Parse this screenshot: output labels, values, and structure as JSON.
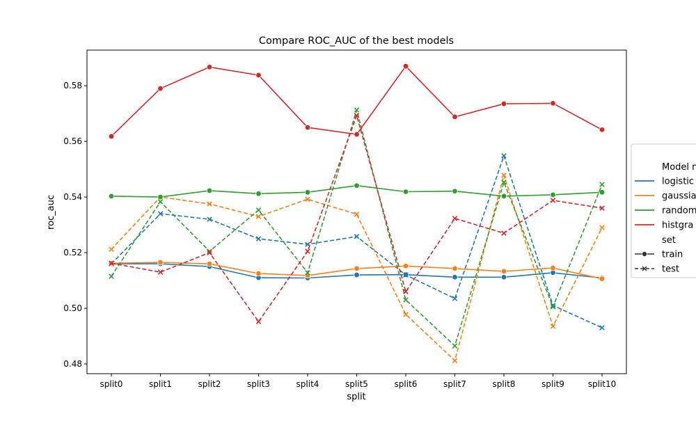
{
  "chart_data": {
    "type": "line",
    "title": "Compare ROC_AUC of the best models",
    "xlabel": "split",
    "ylabel": "roc_auc",
    "categories": [
      "split0",
      "split1",
      "split2",
      "split3",
      "split4",
      "split5",
      "split6",
      "split7",
      "split8",
      "split9",
      "split10"
    ],
    "ylim": [
      0.4765,
      0.5928
    ],
    "yticks": [
      0.48,
      0.5,
      0.52,
      0.54,
      0.56,
      0.58
    ],
    "ytick_labels": [
      "0.48",
      "0.50",
      "0.52",
      "0.54",
      "0.56",
      "0.58"
    ],
    "grid": false,
    "legend": {
      "placement": "right, partially cut off",
      "title": "Model n",
      "style_title": "set",
      "entries": [
        {
          "label": "logistic",
          "color": "#1f77b4"
        },
        {
          "label": "gaussia",
          "color": "#ff7f0e"
        },
        {
          "label": "random",
          "color": "#2ca02c"
        },
        {
          "label": "histgra",
          "color": "#d62728"
        }
      ],
      "style_entries": [
        {
          "label": "train",
          "dash": "solid",
          "marker": "circle"
        },
        {
          "label": "test",
          "dash": "dashed",
          "marker": "x"
        }
      ]
    },
    "series": [
      {
        "model": "logistic",
        "set": "train",
        "color": "#1f77b4",
        "dash": "solid",
        "marker": "circle",
        "values": [
          0.516,
          0.516,
          0.515,
          0.511,
          0.5109,
          0.512,
          0.5121,
          0.5112,
          0.5112,
          0.5128,
          0.5109
        ]
      },
      {
        "model": "logistic",
        "set": "test",
        "color": "#1f77b4",
        "dash": "dashed",
        "marker": "x",
        "values": [
          0.516,
          0.534,
          0.532,
          0.525,
          0.523,
          0.5258,
          0.512,
          0.5035,
          0.5548,
          0.501,
          0.493
        ]
      },
      {
        "model": "gaussia",
        "set": "train",
        "color": "#ff7f0e",
        "dash": "solid",
        "marker": "circle",
        "values": [
          0.5162,
          0.5165,
          0.516,
          0.5125,
          0.5118,
          0.5143,
          0.5152,
          0.5143,
          0.5133,
          0.5145,
          0.5106
        ]
      },
      {
        "model": "gaussia",
        "set": "test",
        "color": "#ff7f0e",
        "dash": "dashed",
        "marker": "x",
        "values": [
          0.5212,
          0.54,
          0.5375,
          0.533,
          0.5392,
          0.5338,
          0.4978,
          0.4812,
          0.5478,
          0.4935,
          0.529
        ]
      },
      {
        "model": "random",
        "set": "train",
        "color": "#2ca02c",
        "dash": "solid",
        "marker": "circle",
        "values": [
          0.5403,
          0.54,
          0.5423,
          0.5412,
          0.5417,
          0.5441,
          0.5419,
          0.5421,
          0.5403,
          0.5408,
          0.5417
        ]
      },
      {
        "model": "random",
        "set": "test",
        "color": "#2ca02c",
        "dash": "dashed",
        "marker": "x",
        "values": [
          0.5115,
          0.5383,
          0.5205,
          0.5353,
          0.5128,
          0.5713,
          0.503,
          0.4865,
          0.5453,
          0.5005,
          0.5445
        ]
      },
      {
        "model": "histgra",
        "set": "train",
        "color": "#d62728",
        "dash": "solid",
        "marker": "circle",
        "values": [
          0.5618,
          0.579,
          0.5867,
          0.5838,
          0.565,
          0.5625,
          0.587,
          0.5688,
          0.5735,
          0.5737,
          0.5642
        ]
      },
      {
        "model": "histgra",
        "set": "test",
        "color": "#d62728",
        "dash": "dashed",
        "marker": "x",
        "values": [
          0.5162,
          0.513,
          0.52,
          0.4952,
          0.5205,
          0.5693,
          0.506,
          0.5323,
          0.527,
          0.5388,
          0.536
        ]
      }
    ]
  }
}
